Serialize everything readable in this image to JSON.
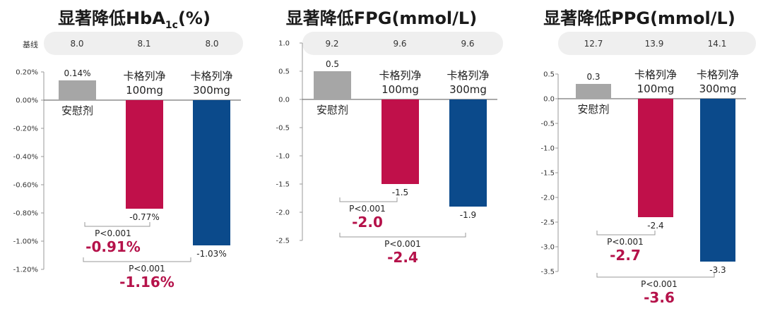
{
  "baseline_label": "基线",
  "chart_data": [
    {
      "type": "bar",
      "title_main": "显著降低HbA",
      "title_sub": "1c",
      "title_suffix": "(%)",
      "categories": [
        "安慰剂",
        "卡格列净\n100mg",
        "卡格列净\n300mg"
      ],
      "baseline": [
        "8.0",
        "8.1",
        "8.0"
      ],
      "values": [
        0.14,
        -0.77,
        -1.03
      ],
      "value_labels": [
        "0.14%",
        "-0.77%",
        "-1.03%"
      ],
      "ylim": [
        -1.2,
        0.2
      ],
      "ticks": [
        0.2,
        0.0,
        -0.2,
        -0.4,
        -0.6,
        -0.8,
        -1.0,
        -1.2
      ],
      "tick_labels": [
        "0.20%",
        "0.00%",
        "-0.20%",
        "-0.40%",
        "-0.60%",
        "-0.80%",
        "-1.00%",
        "-1.20%"
      ],
      "comparisons": [
        {
          "p": "P<0.001",
          "diff": "-0.91%"
        },
        {
          "p": "P<0.001",
          "diff": "-1.16%"
        }
      ]
    },
    {
      "type": "bar",
      "title_main": "显著降低FPG(mmol/L)",
      "title_sub": "",
      "title_suffix": "",
      "categories": [
        "安慰剂",
        "卡格列净\n100mg",
        "卡格列净\n300mg"
      ],
      "baseline": [
        "9.2",
        "9.6",
        "9.6"
      ],
      "values": [
        0.5,
        -1.5,
        -1.9
      ],
      "value_labels": [
        "0.5",
        "-1.5",
        "-1.9"
      ],
      "ylim": [
        -2.5,
        1.0
      ],
      "ticks": [
        1.0,
        0.5,
        0.0,
        -0.5,
        -1.0,
        -1.5,
        -2.0,
        -2.5
      ],
      "tick_labels": [
        "1.0",
        "0.5",
        "0.0",
        "-0.5",
        "-1.0",
        "-1.5",
        "-2.0",
        "-2.5"
      ],
      "comparisons": [
        {
          "p": "P<0.001",
          "diff": "-2.0"
        },
        {
          "p": "P<0.001",
          "diff": "-2.4"
        }
      ]
    },
    {
      "type": "bar",
      "title_main": "显著降低PPG(mmol/L)",
      "title_sub": "",
      "title_suffix": "",
      "categories": [
        "安慰剂",
        "卡格列净\n100mg",
        "卡格列净\n300mg"
      ],
      "baseline": [
        "12.7",
        "13.9",
        "14.1"
      ],
      "values": [
        0.3,
        -2.4,
        -3.3
      ],
      "value_labels": [
        "0.3",
        "-2.4",
        "-3.3"
      ],
      "ylim": [
        -3.5,
        0.5
      ],
      "ticks": [
        0.5,
        0.0,
        -0.5,
        -1.0,
        -1.5,
        -2.0,
        -2.5,
        -3.0,
        -3.5
      ],
      "tick_labels": [
        "0.5",
        "0.0",
        "-0.5",
        "-1.0",
        "-1.5",
        "-2.0",
        "-2.5",
        "-3.0",
        "-3.5"
      ],
      "comparisons": [
        {
          "p": "P<0.001",
          "diff": "-2.7"
        },
        {
          "p": "P<0.001",
          "diff": "-3.6"
        }
      ]
    }
  ],
  "colors": {
    "placebo": "#a6a6a6",
    "cana100": "#c0104a",
    "cana300": "#0b4a8b",
    "diff": "#b5124a"
  }
}
